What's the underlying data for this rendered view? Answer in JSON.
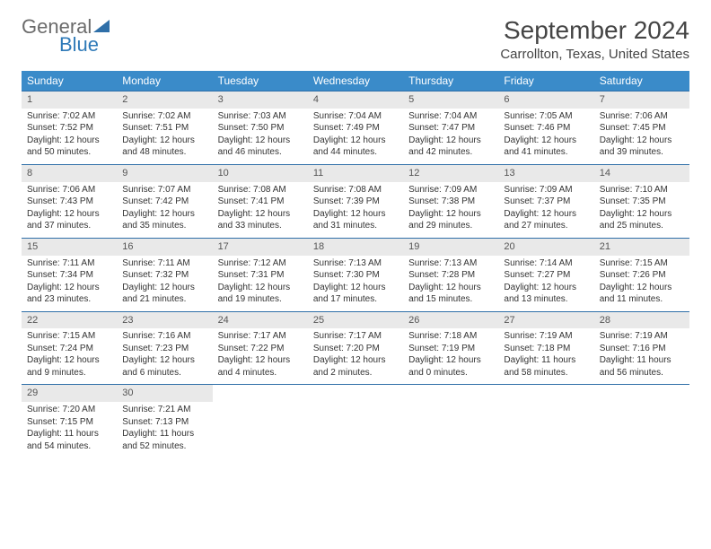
{
  "logo": {
    "text_general": "General",
    "text_blue": "Blue"
  },
  "header": {
    "month_title": "September 2024",
    "location": "Carrollton, Texas, United States"
  },
  "weekdays": [
    "Sunday",
    "Monday",
    "Tuesday",
    "Wednesday",
    "Thursday",
    "Friday",
    "Saturday"
  ],
  "colors": {
    "header_bg": "#3a8bc9",
    "border": "#2f6fa8",
    "daynum_bg": "#e9e9e9",
    "logo_gray": "#6b6b6b",
    "logo_blue": "#2f7ab8"
  },
  "weeks": [
    [
      {
        "n": "1",
        "sunrise": "Sunrise: 7:02 AM",
        "sunset": "Sunset: 7:52 PM",
        "daylight": "Daylight: 12 hours and 50 minutes."
      },
      {
        "n": "2",
        "sunrise": "Sunrise: 7:02 AM",
        "sunset": "Sunset: 7:51 PM",
        "daylight": "Daylight: 12 hours and 48 minutes."
      },
      {
        "n": "3",
        "sunrise": "Sunrise: 7:03 AM",
        "sunset": "Sunset: 7:50 PM",
        "daylight": "Daylight: 12 hours and 46 minutes."
      },
      {
        "n": "4",
        "sunrise": "Sunrise: 7:04 AM",
        "sunset": "Sunset: 7:49 PM",
        "daylight": "Daylight: 12 hours and 44 minutes."
      },
      {
        "n": "5",
        "sunrise": "Sunrise: 7:04 AM",
        "sunset": "Sunset: 7:47 PM",
        "daylight": "Daylight: 12 hours and 42 minutes."
      },
      {
        "n": "6",
        "sunrise": "Sunrise: 7:05 AM",
        "sunset": "Sunset: 7:46 PM",
        "daylight": "Daylight: 12 hours and 41 minutes."
      },
      {
        "n": "7",
        "sunrise": "Sunrise: 7:06 AM",
        "sunset": "Sunset: 7:45 PM",
        "daylight": "Daylight: 12 hours and 39 minutes."
      }
    ],
    [
      {
        "n": "8",
        "sunrise": "Sunrise: 7:06 AM",
        "sunset": "Sunset: 7:43 PM",
        "daylight": "Daylight: 12 hours and 37 minutes."
      },
      {
        "n": "9",
        "sunrise": "Sunrise: 7:07 AM",
        "sunset": "Sunset: 7:42 PM",
        "daylight": "Daylight: 12 hours and 35 minutes."
      },
      {
        "n": "10",
        "sunrise": "Sunrise: 7:08 AM",
        "sunset": "Sunset: 7:41 PM",
        "daylight": "Daylight: 12 hours and 33 minutes."
      },
      {
        "n": "11",
        "sunrise": "Sunrise: 7:08 AM",
        "sunset": "Sunset: 7:39 PM",
        "daylight": "Daylight: 12 hours and 31 minutes."
      },
      {
        "n": "12",
        "sunrise": "Sunrise: 7:09 AM",
        "sunset": "Sunset: 7:38 PM",
        "daylight": "Daylight: 12 hours and 29 minutes."
      },
      {
        "n": "13",
        "sunrise": "Sunrise: 7:09 AM",
        "sunset": "Sunset: 7:37 PM",
        "daylight": "Daylight: 12 hours and 27 minutes."
      },
      {
        "n": "14",
        "sunrise": "Sunrise: 7:10 AM",
        "sunset": "Sunset: 7:35 PM",
        "daylight": "Daylight: 12 hours and 25 minutes."
      }
    ],
    [
      {
        "n": "15",
        "sunrise": "Sunrise: 7:11 AM",
        "sunset": "Sunset: 7:34 PM",
        "daylight": "Daylight: 12 hours and 23 minutes."
      },
      {
        "n": "16",
        "sunrise": "Sunrise: 7:11 AM",
        "sunset": "Sunset: 7:32 PM",
        "daylight": "Daylight: 12 hours and 21 minutes."
      },
      {
        "n": "17",
        "sunrise": "Sunrise: 7:12 AM",
        "sunset": "Sunset: 7:31 PM",
        "daylight": "Daylight: 12 hours and 19 minutes."
      },
      {
        "n": "18",
        "sunrise": "Sunrise: 7:13 AM",
        "sunset": "Sunset: 7:30 PM",
        "daylight": "Daylight: 12 hours and 17 minutes."
      },
      {
        "n": "19",
        "sunrise": "Sunrise: 7:13 AM",
        "sunset": "Sunset: 7:28 PM",
        "daylight": "Daylight: 12 hours and 15 minutes."
      },
      {
        "n": "20",
        "sunrise": "Sunrise: 7:14 AM",
        "sunset": "Sunset: 7:27 PM",
        "daylight": "Daylight: 12 hours and 13 minutes."
      },
      {
        "n": "21",
        "sunrise": "Sunrise: 7:15 AM",
        "sunset": "Sunset: 7:26 PM",
        "daylight": "Daylight: 12 hours and 11 minutes."
      }
    ],
    [
      {
        "n": "22",
        "sunrise": "Sunrise: 7:15 AM",
        "sunset": "Sunset: 7:24 PM",
        "daylight": "Daylight: 12 hours and 9 minutes."
      },
      {
        "n": "23",
        "sunrise": "Sunrise: 7:16 AM",
        "sunset": "Sunset: 7:23 PM",
        "daylight": "Daylight: 12 hours and 6 minutes."
      },
      {
        "n": "24",
        "sunrise": "Sunrise: 7:17 AM",
        "sunset": "Sunset: 7:22 PM",
        "daylight": "Daylight: 12 hours and 4 minutes."
      },
      {
        "n": "25",
        "sunrise": "Sunrise: 7:17 AM",
        "sunset": "Sunset: 7:20 PM",
        "daylight": "Daylight: 12 hours and 2 minutes."
      },
      {
        "n": "26",
        "sunrise": "Sunrise: 7:18 AM",
        "sunset": "Sunset: 7:19 PM",
        "daylight": "Daylight: 12 hours and 0 minutes."
      },
      {
        "n": "27",
        "sunrise": "Sunrise: 7:19 AM",
        "sunset": "Sunset: 7:18 PM",
        "daylight": "Daylight: 11 hours and 58 minutes."
      },
      {
        "n": "28",
        "sunrise": "Sunrise: 7:19 AM",
        "sunset": "Sunset: 7:16 PM",
        "daylight": "Daylight: 11 hours and 56 minutes."
      }
    ],
    [
      {
        "n": "29",
        "sunrise": "Sunrise: 7:20 AM",
        "sunset": "Sunset: 7:15 PM",
        "daylight": "Daylight: 11 hours and 54 minutes."
      },
      {
        "n": "30",
        "sunrise": "Sunrise: 7:21 AM",
        "sunset": "Sunset: 7:13 PM",
        "daylight": "Daylight: 11 hours and 52 minutes."
      },
      null,
      null,
      null,
      null,
      null
    ]
  ]
}
